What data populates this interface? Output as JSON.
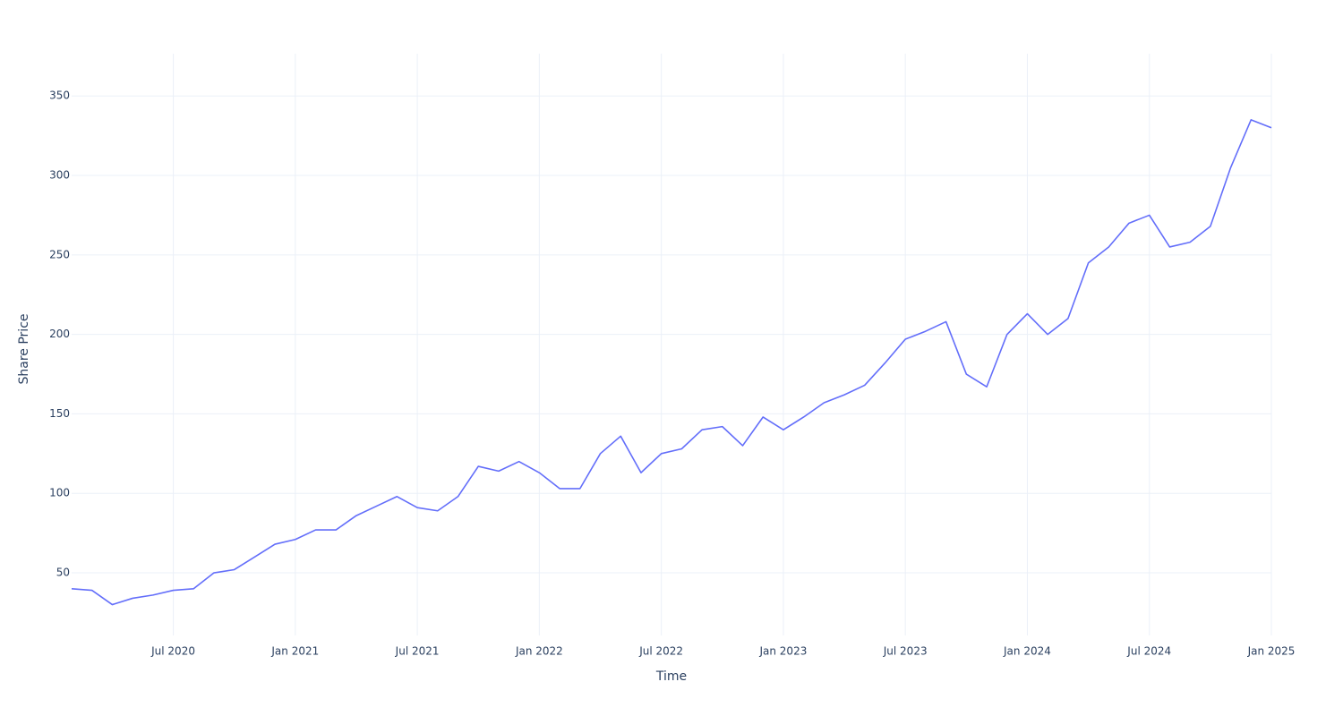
{
  "chart_data": {
    "type": "line",
    "x_label": "Time",
    "y_label": "Share Price",
    "x": [
      "2020-02",
      "2020-03",
      "2020-04",
      "2020-05",
      "2020-06",
      "2020-07",
      "2020-08",
      "2020-09",
      "2020-10",
      "2020-11",
      "2020-12",
      "2021-01",
      "2021-02",
      "2021-03",
      "2021-04",
      "2021-05",
      "2021-06",
      "2021-07",
      "2021-08",
      "2021-09",
      "2021-10",
      "2021-11",
      "2021-12",
      "2022-01",
      "2022-02",
      "2022-03",
      "2022-04",
      "2022-05",
      "2022-06",
      "2022-07",
      "2022-08",
      "2022-09",
      "2022-10",
      "2022-11",
      "2022-12",
      "2023-01",
      "2023-02",
      "2023-03",
      "2023-04",
      "2023-05",
      "2023-06",
      "2023-07",
      "2023-08",
      "2023-09",
      "2023-10",
      "2023-11",
      "2023-12",
      "2024-01",
      "2024-02",
      "2024-03",
      "2024-04",
      "2024-05",
      "2024-06",
      "2024-07",
      "2024-08",
      "2024-09",
      "2024-10",
      "2024-11",
      "2024-12",
      "2025-01"
    ],
    "series": [
      {
        "name": "Share Price",
        "color": "#636efa",
        "values": [
          40,
          39,
          30,
          34,
          36,
          39,
          40,
          50,
          52,
          60,
          68,
          71,
          77,
          77,
          86,
          92,
          98,
          91,
          89,
          98,
          117,
          114,
          120,
          113,
          103,
          103,
          125,
          136,
          113,
          125,
          128,
          140,
          142,
          130,
          148,
          140,
          148,
          157,
          162,
          168,
          182,
          197,
          202,
          208,
          175,
          167,
          200,
          213,
          200,
          210,
          245,
          255,
          270,
          275,
          255,
          258,
          268,
          305,
          335,
          330
        ]
      }
    ],
    "xlim": [
      "2020-02",
      "2025-01"
    ],
    "xticks": [
      {
        "value": "2020-07",
        "label": "Jul 2020"
      },
      {
        "value": "2021-01",
        "label": "Jan 2021"
      },
      {
        "value": "2021-07",
        "label": "Jul 2021"
      },
      {
        "value": "2022-01",
        "label": "Jan 2022"
      },
      {
        "value": "2022-07",
        "label": "Jul 2022"
      },
      {
        "value": "2023-01",
        "label": "Jan 2023"
      },
      {
        "value": "2023-07",
        "label": "Jul 2023"
      },
      {
        "value": "2024-01",
        "label": "Jan 2024"
      },
      {
        "value": "2024-07",
        "label": "Jul 2024"
      },
      {
        "value": "2025-01",
        "label": "Jan 2025"
      }
    ],
    "ylim": [
      10.6,
      376.6
    ],
    "yticks": [
      50,
      100,
      150,
      200,
      250,
      300,
      350
    ],
    "grid": true
  }
}
